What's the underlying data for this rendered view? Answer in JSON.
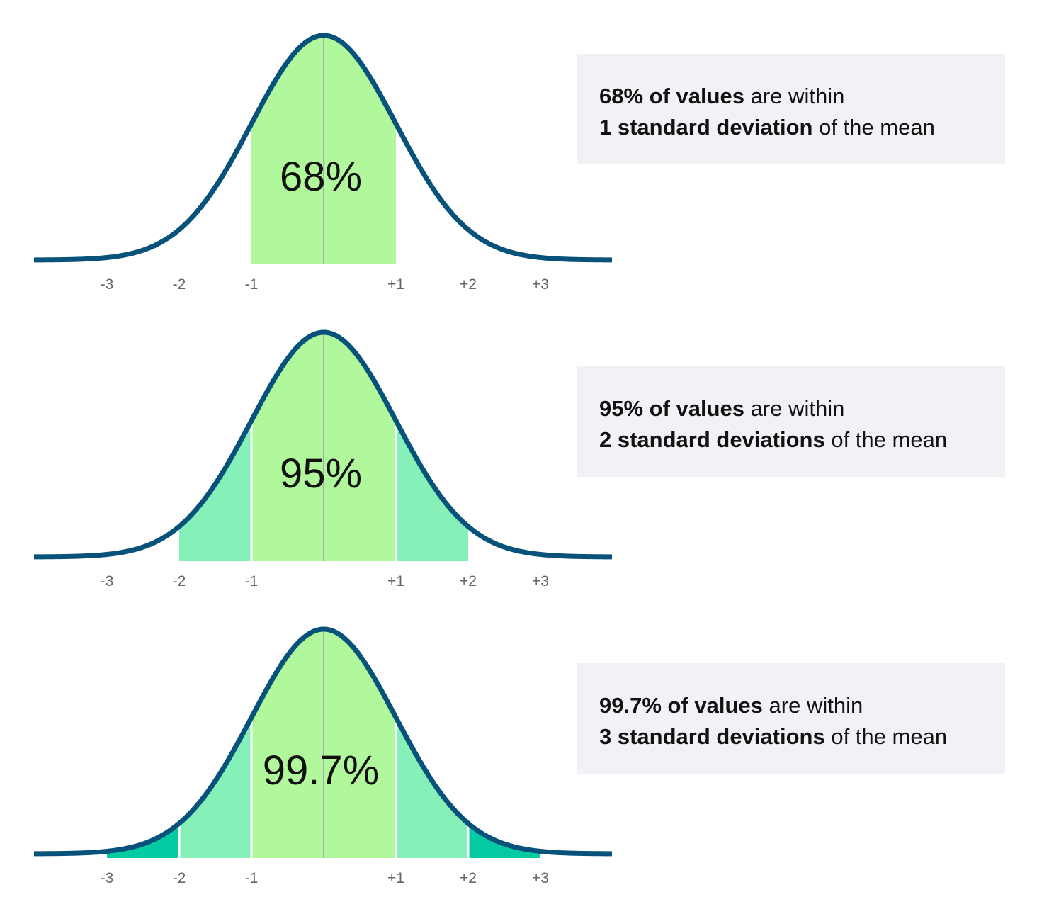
{
  "panels": [
    {
      "percent": "68%",
      "ticks": [
        "-3",
        "-2",
        "-1",
        "+1",
        "+2",
        "+3"
      ],
      "note": {
        "line1_bold": "68% of values",
        "line1_rest": "are within",
        "line2_bold": "1 standard deviation",
        "line2_rest": "of the mean"
      }
    },
    {
      "percent": "95%",
      "ticks": [
        "-3",
        "-2",
        "-1",
        "+1",
        "+2",
        "+3"
      ],
      "note": {
        "line1_bold": "95% of values",
        "line1_rest": "are within",
        "line2_bold": "2 standard deviations",
        "line2_rest": "of the mean"
      }
    },
    {
      "percent": "99.7%",
      "ticks": [
        "-3",
        "-2",
        "-1",
        "+1",
        "+2",
        "+3"
      ],
      "note": {
        "line1_bold": "99.7% of values",
        "line1_rest": "are within",
        "line2_bold": "3 standard deviations",
        "line2_rest": "of the mean"
      }
    }
  ]
}
